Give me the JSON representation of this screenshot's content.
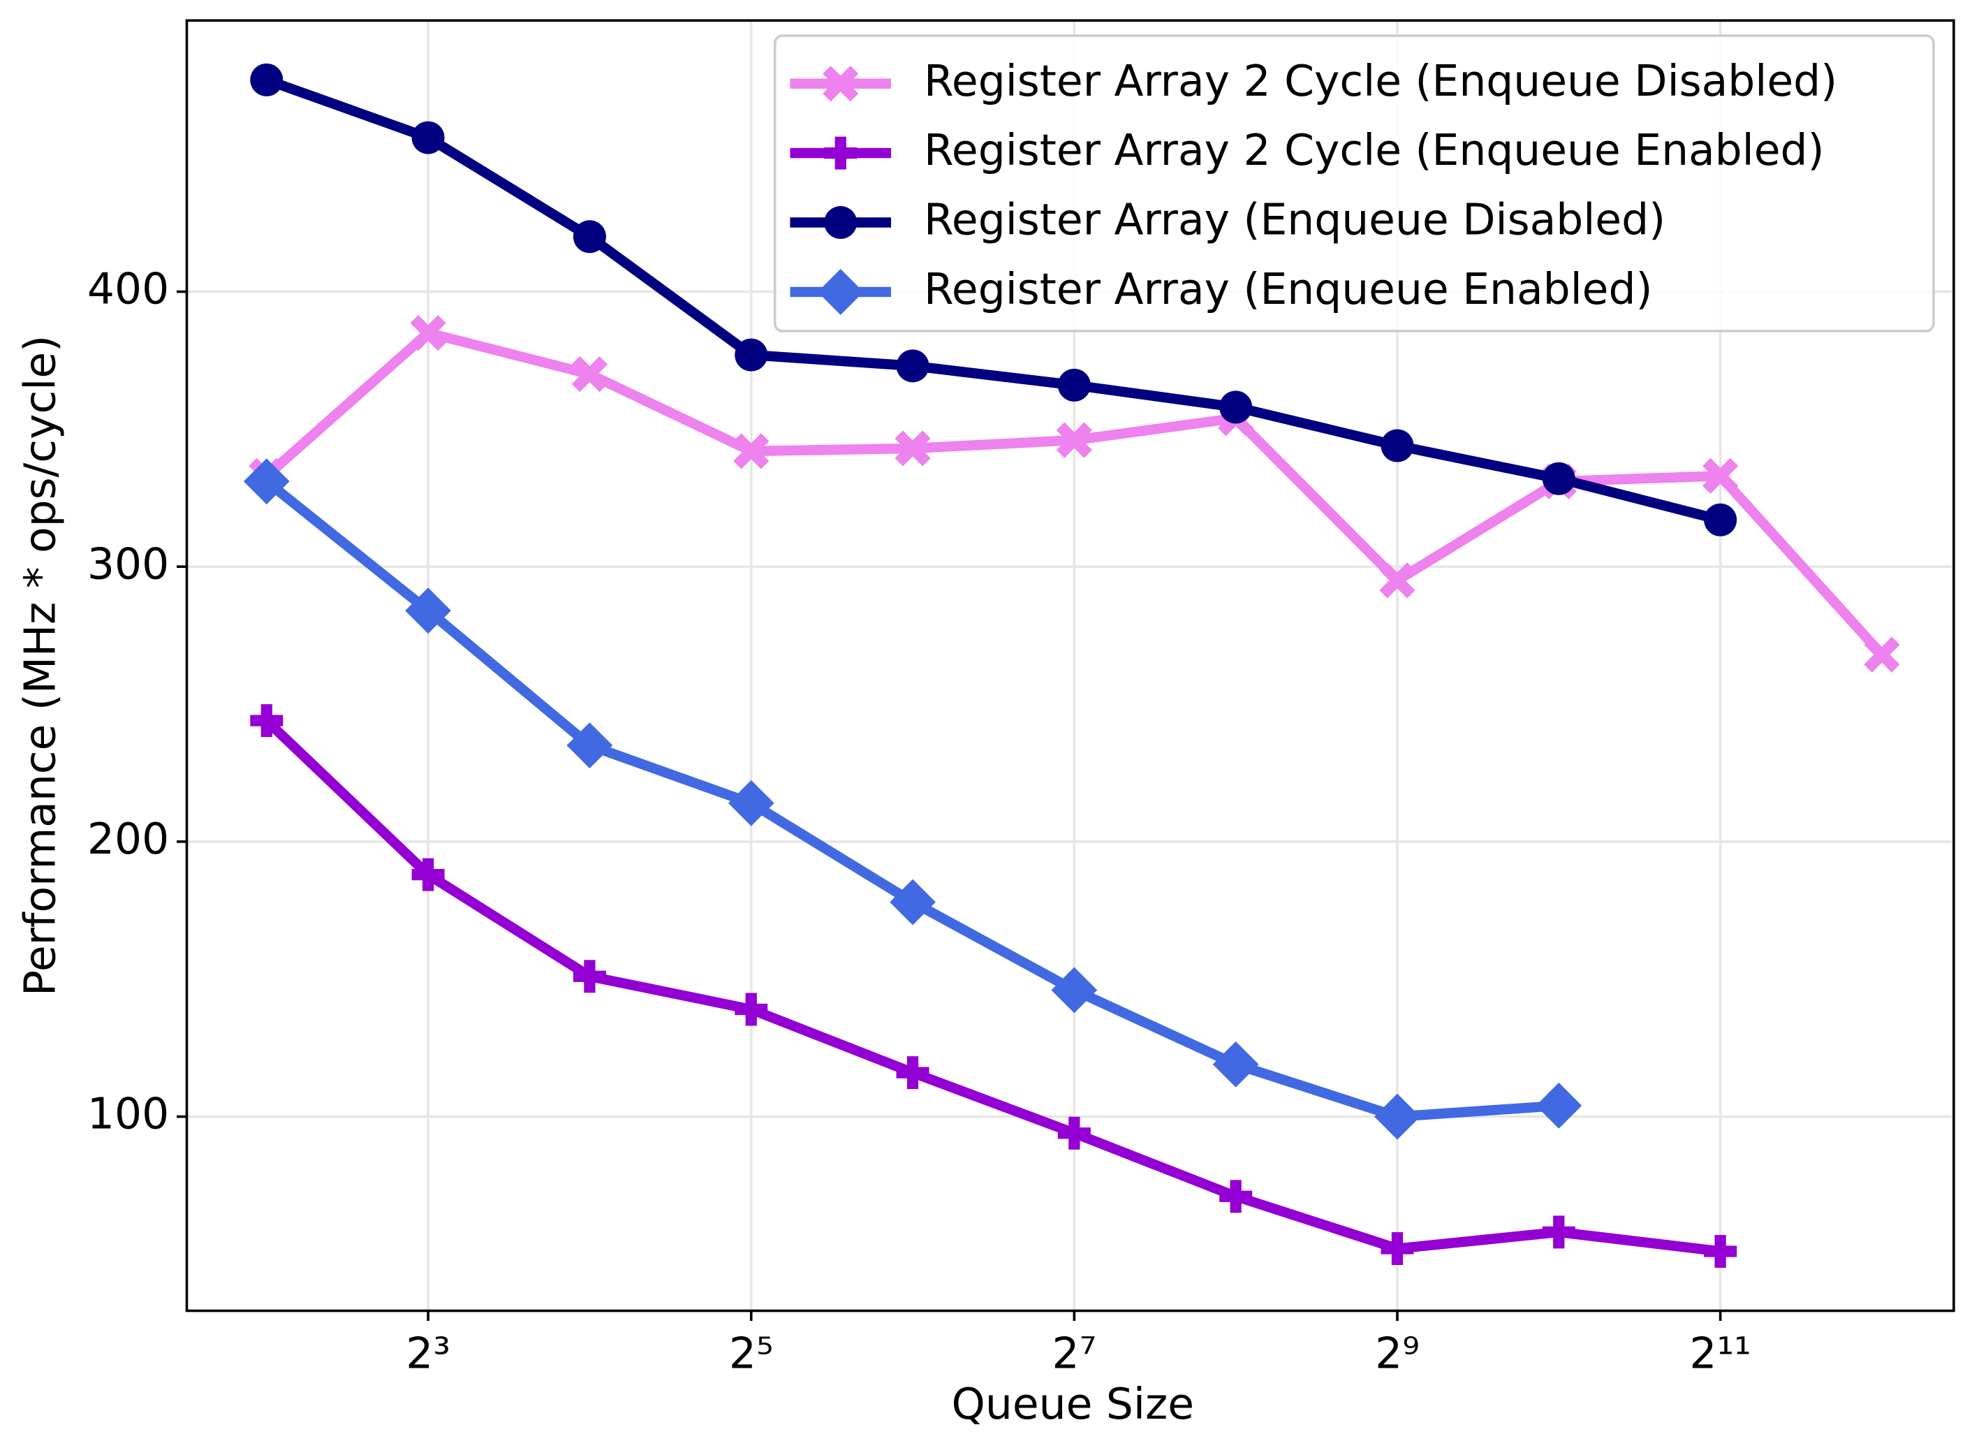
{
  "chart_data": {
    "type": "line",
    "x_label": "Queue Size",
    "y_label": "Performance (MHz * ops/cycle)",
    "x": [
      4,
      8,
      16,
      32,
      64,
      128,
      256,
      512,
      1024,
      2048,
      4096
    ],
    "xlim": [
      2.84,
      5576
    ],
    "ylim": [
      29.4,
      498.6
    ],
    "x_scale": "log2",
    "xticks": [
      {
        "value": 8,
        "label": "2³"
      },
      {
        "value": 32,
        "label": "2⁵"
      },
      {
        "value": 128,
        "label": "2⁷"
      },
      {
        "value": 512,
        "label": "2⁹"
      },
      {
        "value": 2048,
        "label": "2¹¹"
      }
    ],
    "yticks": [
      100,
      200,
      300,
      400
    ],
    "grid": true,
    "legend": "upper right",
    "series": [
      {
        "name": "Register Array 2 Cycle (Enqueue Disabled)",
        "color": "#ee82ee",
        "marker": "x",
        "values": [
          333,
          385,
          370,
          342,
          343,
          346,
          354,
          295,
          331,
          333,
          268
        ]
      },
      {
        "name": "Register Array 2 Cycle (Enqueue Enabled)",
        "color": "#9400d3",
        "marker": "plus",
        "values": [
          244,
          188,
          151,
          139,
          116,
          94,
          71,
          52,
          58,
          51,
          null
        ]
      },
      {
        "name": "Register Array (Enqueue Disabled)",
        "color": "#000080",
        "marker": "circle",
        "values": [
          477,
          456,
          420,
          377,
          373,
          366,
          358,
          344,
          332,
          317,
          null
        ]
      },
      {
        "name": "Register Array (Enqueue Enabled)",
        "color": "#4169e1",
        "marker": "diamond",
        "values": [
          331,
          284,
          235,
          214,
          178,
          146,
          119,
          100,
          104,
          null,
          null
        ]
      }
    ]
  }
}
